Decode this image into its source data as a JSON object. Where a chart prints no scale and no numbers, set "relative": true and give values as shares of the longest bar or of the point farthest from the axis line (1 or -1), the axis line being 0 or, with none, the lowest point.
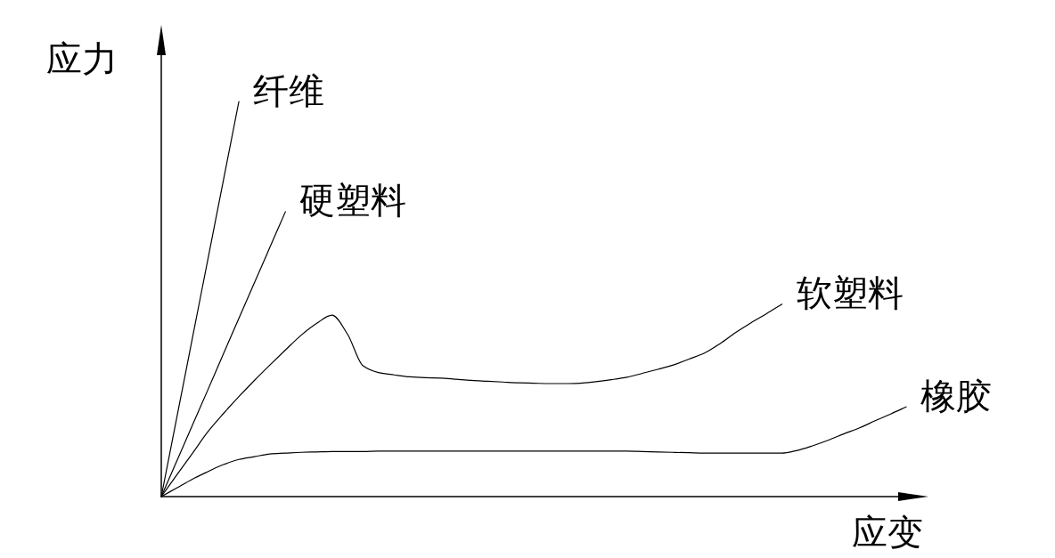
{
  "chart_data": {
    "type": "line",
    "relative": true,
    "xlabel": "应变",
    "ylabel": "应力",
    "line_style": "solid",
    "categories": [
      null,
      null,
      null,
      null,
      null,
      null,
      null,
      null,
      null,
      null,
      null,
      null,
      null,
      null,
      null,
      null,
      null,
      null,
      null,
      null,
      null,
      null,
      null,
      null,
      null,
      null,
      null,
      null,
      null,
      null,
      null,
      null,
      null,
      null,
      null,
      null,
      null,
      null,
      null,
      null,
      null,
      null,
      null,
      null,
      null,
      null,
      null,
      null,
      null
    ],
    "series": [
      {
        "name": "纤维",
        "color": "#000000",
        "values": [
          0,
          0.2,
          0.4,
          0.6,
          0.8,
          1.0,
          null,
          null,
          null,
          null,
          null,
          null,
          null,
          null,
          null,
          null,
          null,
          null,
          null,
          null,
          null,
          null,
          null,
          null,
          null,
          null,
          null,
          null,
          null,
          null,
          null,
          null,
          null,
          null,
          null,
          null,
          null,
          null,
          null,
          null,
          null,
          null,
          null,
          null,
          null,
          null,
          null,
          null,
          null
        ]
      },
      {
        "name": "硬塑料",
        "color": "#000000",
        "values": [
          0,
          0.09,
          0.18,
          0.27,
          0.361,
          0.451,
          0.541,
          0.631,
          0.721,
          null,
          null,
          null,
          null,
          null,
          null,
          null,
          null,
          null,
          null,
          null,
          null,
          null,
          null,
          null,
          null,
          null,
          null,
          null,
          null,
          null,
          null,
          null,
          null,
          null,
          null,
          null,
          null,
          null,
          null,
          null,
          null,
          null,
          null,
          null,
          null,
          null,
          null,
          null,
          null
        ]
      },
      {
        "name": "软塑料",
        "color": "#000000",
        "values": [
          0,
          0.055,
          0.109,
          0.164,
          0.21,
          0.253,
          0.294,
          0.333,
          0.371,
          0.408,
          0.438,
          0.459,
          0.411,
          0.331,
          0.314,
          0.308,
          0.303,
          0.301,
          0.3,
          0.297,
          0.294,
          0.292,
          0.29,
          0.288,
          0.287,
          0.286,
          0.286,
          0.287,
          0.291,
          0.296,
          0.302,
          0.312,
          0.322,
          0.333,
          0.348,
          0.363,
          0.387,
          0.415,
          0.44,
          0.463,
          0.487,
          null,
          null,
          null,
          null,
          null,
          null,
          null,
          null
        ]
      },
      {
        "name": "橡胶",
        "color": "#000000",
        "values": [
          0,
          0.022,
          0.044,
          0.063,
          0.081,
          0.094,
          0.101,
          0.108,
          0.11,
          0.112,
          0.113,
          0.114,
          0.114,
          0.114,
          0.115,
          0.115,
          0.115,
          0.115,
          0.115,
          0.115,
          0.115,
          0.115,
          0.115,
          0.115,
          0.115,
          0.115,
          0.115,
          0.115,
          0.115,
          0.115,
          0.115,
          0.114,
          0.113,
          0.112,
          0.111,
          0.11,
          0.11,
          0.11,
          0.11,
          0.11,
          0.11,
          0.117,
          0.129,
          0.143,
          0.159,
          0.174,
          0.192,
          0.209,
          0.227
        ]
      }
    ]
  }
}
